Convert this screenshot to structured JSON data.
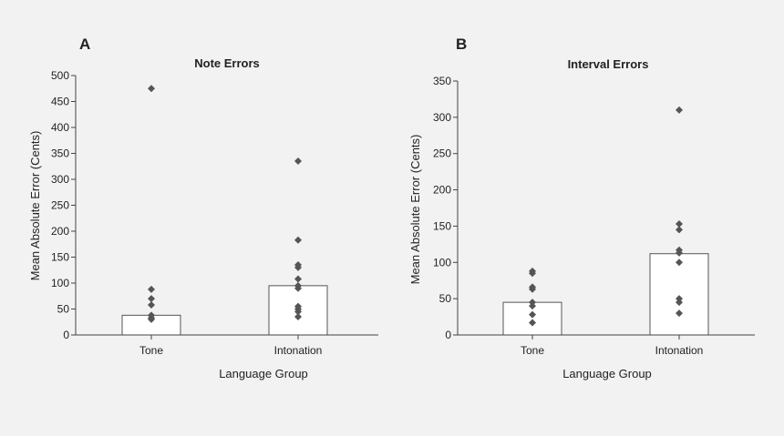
{
  "chart_data": [
    {
      "type": "bar",
      "panel_label": "A",
      "title": "Note Errors",
      "xlabel": "Language Group",
      "ylabel": "Mean Absolute Error (Cents)",
      "ylim": [
        0,
        500
      ],
      "yticks": [
        0,
        50,
        100,
        150,
        200,
        250,
        300,
        350,
        400,
        450,
        500
      ],
      "categories": [
        "Tone",
        "Intonation"
      ],
      "values": [
        38,
        95
      ],
      "points": [
        [
          475,
          88,
          70,
          58,
          38,
          33,
          30
        ],
        [
          335,
          183,
          135,
          130,
          108,
          95,
          90,
          55,
          50,
          45,
          35
        ]
      ],
      "colors": {
        "bar_fill": "#ffffff",
        "bar_stroke": "#555555",
        "marker": "#555555"
      },
      "grid": false
    },
    {
      "type": "bar",
      "panel_label": "B",
      "title": "Interval Errors",
      "xlabel": "Language Group",
      "ylabel": "Mean Absolute Error (Cents)",
      "ylim": [
        0,
        350
      ],
      "yticks": [
        0,
        50,
        100,
        150,
        200,
        250,
        300,
        350
      ],
      "categories": [
        "Tone",
        "Intonation"
      ],
      "values": [
        45,
        112
      ],
      "points": [
        [
          88,
          85,
          66,
          63,
          45,
          40,
          28,
          17
        ],
        [
          310,
          153,
          145,
          117,
          113,
          100,
          50,
          45,
          30
        ]
      ],
      "colors": {
        "bar_fill": "#ffffff",
        "bar_stroke": "#555555",
        "marker": "#555555"
      },
      "grid": false
    }
  ]
}
